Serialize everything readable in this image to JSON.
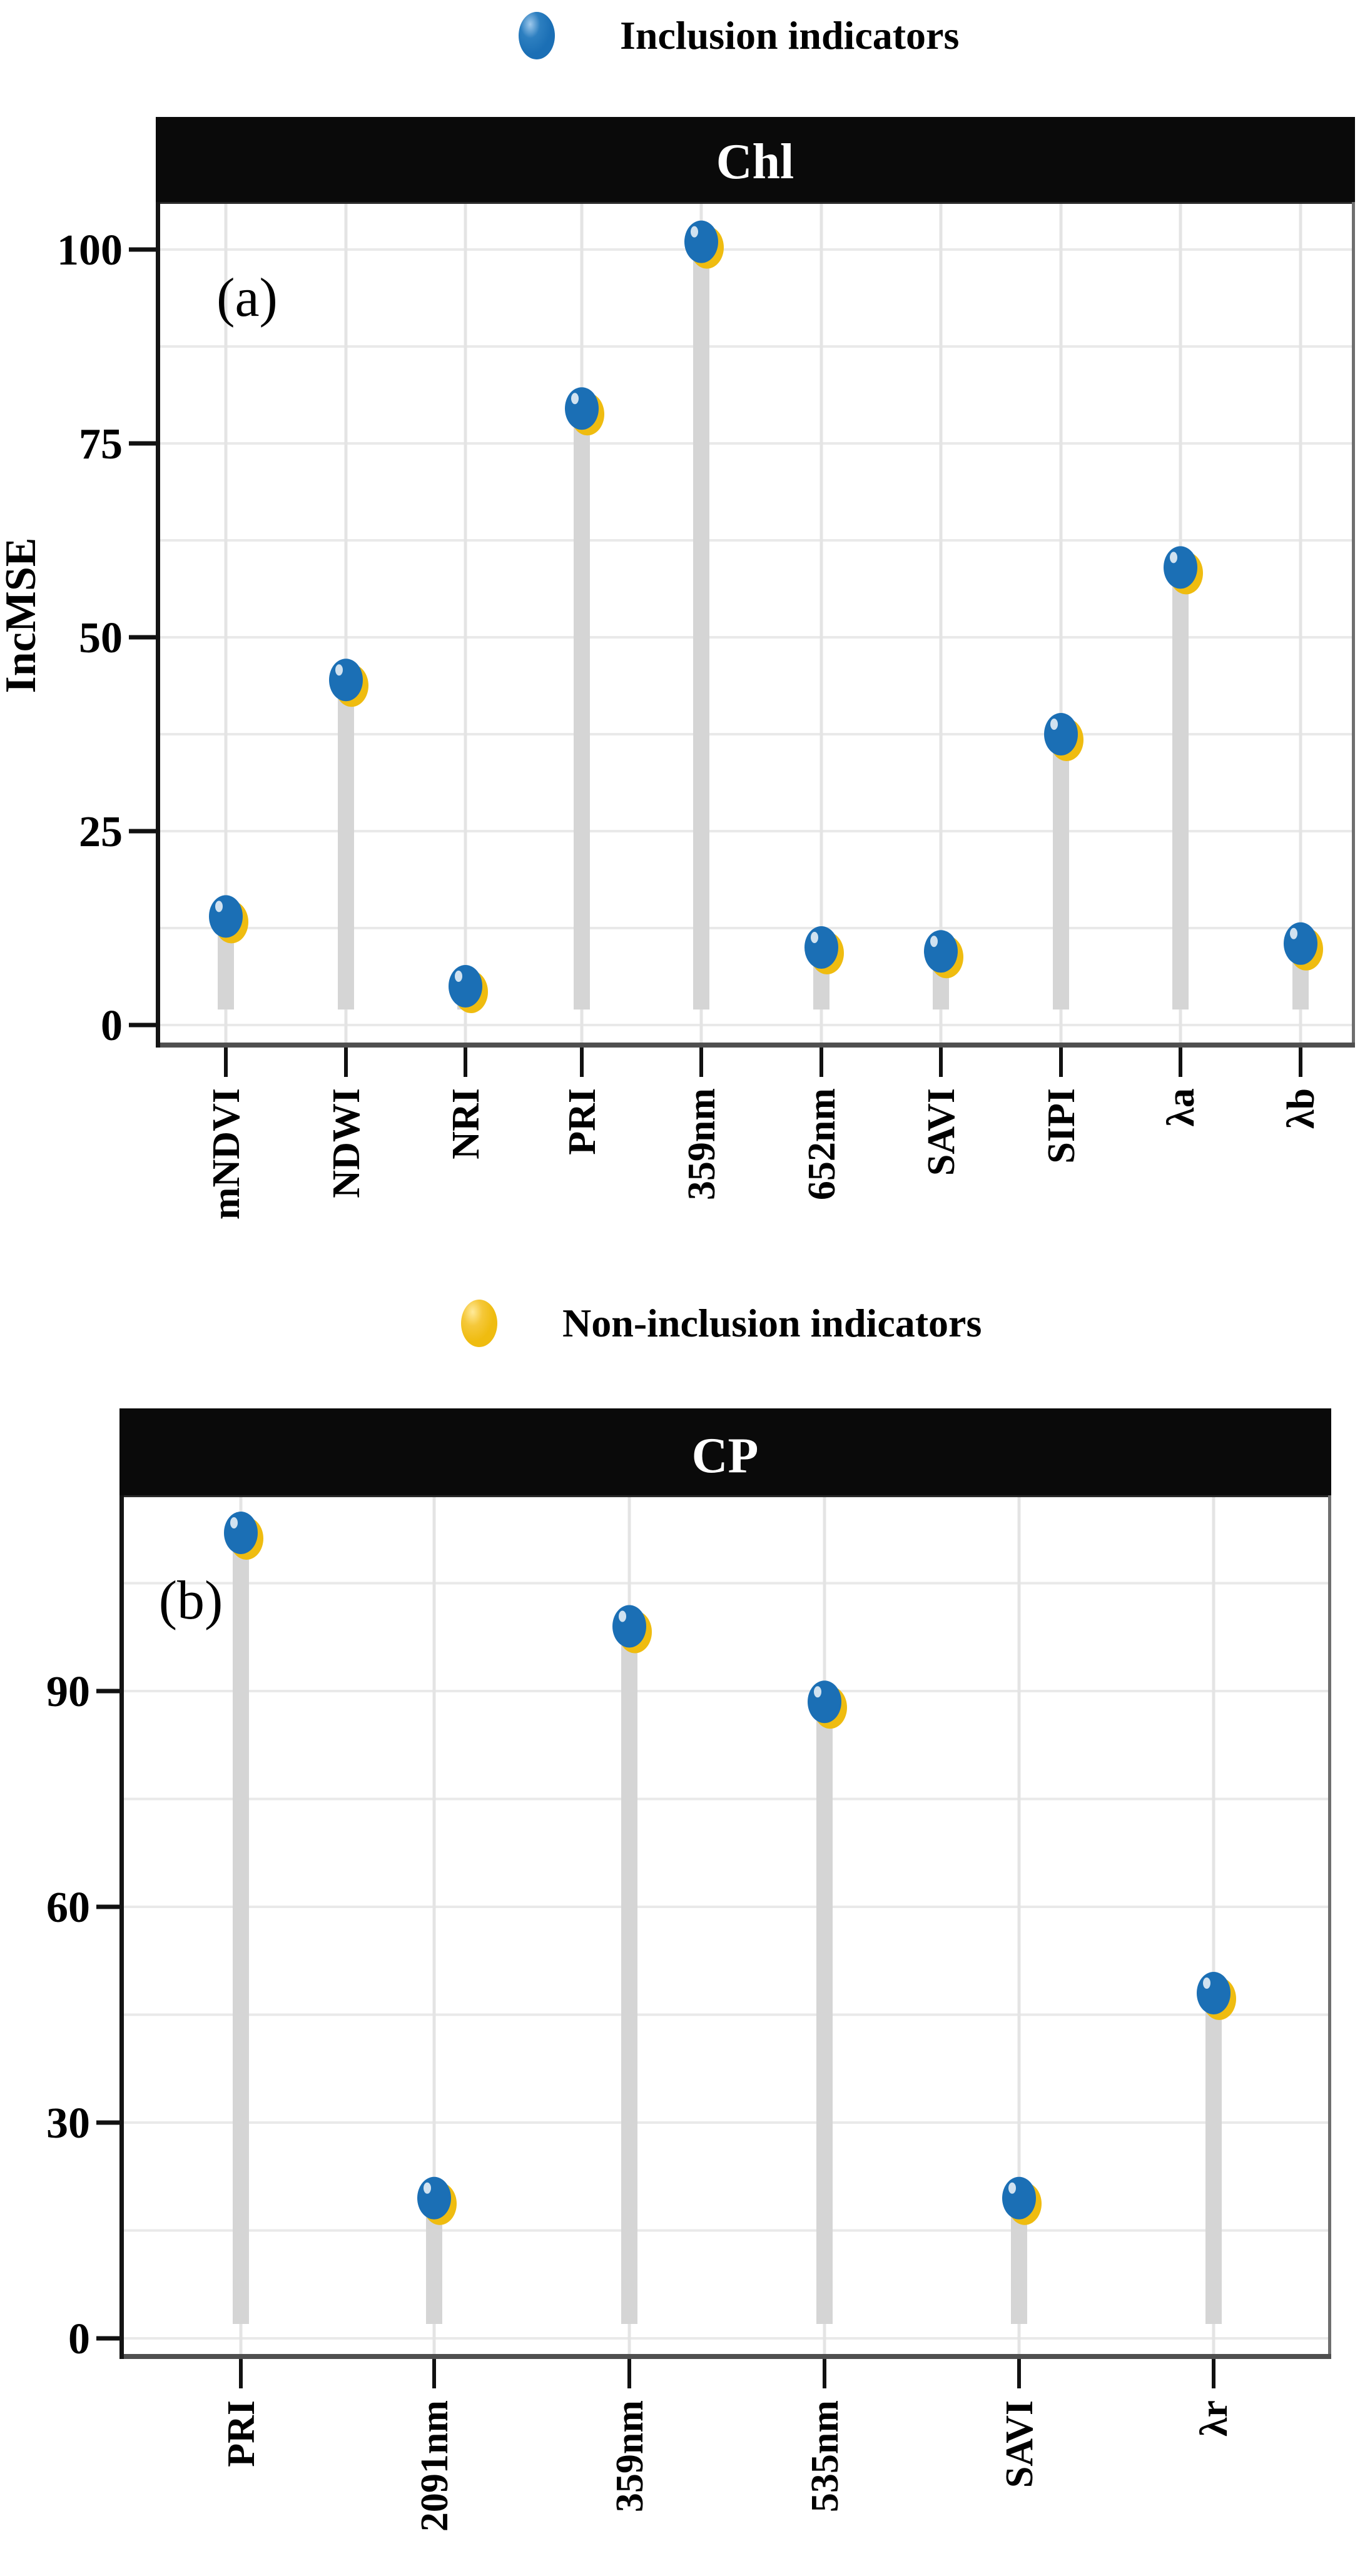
{
  "page": {
    "background": "#ffffff"
  },
  "legends": [
    {
      "label": "Inclusion indicators",
      "color": "#1b6fb5",
      "marker": "ellipse-dot-icon"
    },
    {
      "label": "Non-inclusion indicators",
      "color": "#efbc10",
      "marker": "ellipse-dot-icon"
    }
  ],
  "chart_data": [
    {
      "type": "lollipop",
      "panel_annotation": "(a)",
      "facet_label": "Chl",
      "ylabel": "IncMSE",
      "legend_label": "Inclusion indicators",
      "marker_color": "#1b6fb5",
      "underlay_marker_color": "#efbc10",
      "stem_color": "#d5d5d5",
      "strip_color": "#0a0a0a",
      "strip_text_color": "#ffffff",
      "grid": true,
      "grid_step": 12.5,
      "yticks": [
        0,
        25,
        50,
        75,
        100
      ],
      "ylim": [
        0,
        105.5
      ],
      "categories": [
        "mNDVI",
        "NDWI",
        "NRI",
        "PRI",
        "359nm",
        "652nm",
        "SAVI",
        "SIPI",
        "λa",
        "λb"
      ],
      "values": [
        14,
        44.5,
        5,
        79.5,
        101,
        10,
        9.5,
        37.5,
        59,
        10.5
      ]
    },
    {
      "type": "lollipop",
      "panel_annotation": "(b)",
      "facet_label": "CP",
      "ylabel": "",
      "legend_label": "Non-inclusion indicators",
      "marker_color": "#1b6fb5",
      "underlay_marker_color": "#efbc10",
      "stem_color": "#d5d5d5",
      "strip_color": "#0a0a0a",
      "strip_text_color": "#ffffff",
      "grid": true,
      "grid_step": 15,
      "yticks": [
        0,
        30,
        60,
        90
      ],
      "ylim": [
        0,
        117.5
      ],
      "categories": [
        "PRI",
        "2091nm",
        "359nm",
        "535nm",
        "SAVI",
        "λr"
      ],
      "values": [
        112,
        19.5,
        99,
        88.5,
        19.5,
        48
      ]
    }
  ]
}
